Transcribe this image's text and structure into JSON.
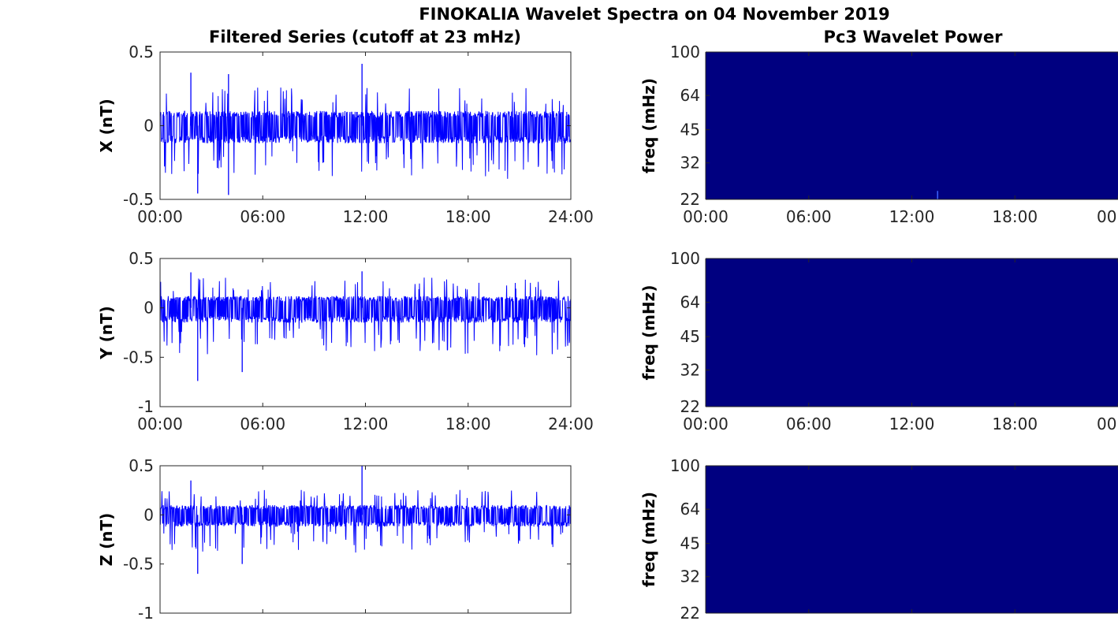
{
  "figure": {
    "title": "FINOKALIA Wavelet Spectra on 04 November 2019",
    "left_title": "Filtered Series (cutoff at 23 mHz)",
    "right_title": "Pc3 Wavelet Power",
    "series_color": "#0000ff",
    "spectrum_color": "#000080",
    "spike_color": "#3c64ff"
  },
  "chart_data": [
    {
      "type": "line",
      "panel": "X",
      "ylabel": "X (nT)",
      "ylim": [
        -0.5,
        0.5
      ],
      "yticks": [
        "0.5",
        "0",
        "-0.5"
      ],
      "xticks": [
        "00:00",
        "06:00",
        "12:00",
        "18:00",
        "24:00"
      ],
      "xlim_hours": [
        0,
        24
      ],
      "noise_envelope_nT": [
        -0.12,
        0.1
      ],
      "spikes": [
        {
          "x": "01:48",
          "y": 0.36
        },
        {
          "x": "04:00",
          "y": 0.35
        },
        {
          "x": "11:48",
          "y": 0.42
        },
        {
          "x": "04:00",
          "y": -0.47
        },
        {
          "x": "02:12",
          "y": -0.46
        }
      ]
    },
    {
      "type": "line",
      "panel": "Y",
      "ylabel": "Y (nT)",
      "ylim": [
        -1,
        0.5
      ],
      "yticks": [
        "0.5",
        "0",
        "-0.5",
        "-1"
      ],
      "xticks": [
        "00:00",
        "06:00",
        "12:00",
        "18:00",
        "24:00"
      ],
      "xlim_hours": [
        0,
        24
      ],
      "noise_envelope_nT": [
        -0.15,
        0.12
      ],
      "spikes": [
        {
          "x": "01:48",
          "y": 0.36
        },
        {
          "x": "11:48",
          "y": 0.37
        },
        {
          "x": "02:12",
          "y": -0.74
        },
        {
          "x": "04:48",
          "y": -0.65
        }
      ]
    },
    {
      "type": "line",
      "panel": "Z",
      "ylabel": "Z (nT)",
      "ylim": [
        -1,
        0.5
      ],
      "yticks": [
        "0.5",
        "0",
        "-0.5",
        "-1"
      ],
      "xticks": [],
      "xlim_hours": [
        0,
        24
      ],
      "noise_envelope_nT": [
        -0.12,
        0.1
      ],
      "spikes": [
        {
          "x": "01:48",
          "y": 0.35
        },
        {
          "x": "11:48",
          "y": 0.5
        },
        {
          "x": "02:12",
          "y": -0.6
        },
        {
          "x": "04:48",
          "y": -0.5
        }
      ]
    },
    {
      "type": "heatmap",
      "panel": "X",
      "ylabel": "freq (mHz)",
      "yticks": [
        "100",
        "64",
        "45",
        "32",
        "22"
      ],
      "ylim_mHz": [
        22,
        100
      ],
      "y_scale": "log",
      "xticks": [
        "00:00",
        "06:00",
        "12:00",
        "18:00",
        "00"
      ],
      "power": "uniformly low",
      "spike": {
        "x": "13:30",
        "freq_mHz": [
          22,
          24
        ]
      }
    },
    {
      "type": "heatmap",
      "panel": "Y",
      "ylabel": "freq (mHz)",
      "yticks": [
        "100",
        "64",
        "45",
        "32",
        "22"
      ],
      "ylim_mHz": [
        22,
        100
      ],
      "y_scale": "log",
      "xticks": [
        "00:00",
        "06:00",
        "12:00",
        "18:00",
        "00"
      ],
      "power": "uniformly low"
    },
    {
      "type": "heatmap",
      "panel": "Z",
      "ylabel": "freq (mHz)",
      "yticks": [
        "100",
        "64",
        "45",
        "32",
        "22"
      ],
      "ylim_mHz": [
        22,
        100
      ],
      "y_scale": "log",
      "xticks": [],
      "power": "uniformly low"
    }
  ]
}
